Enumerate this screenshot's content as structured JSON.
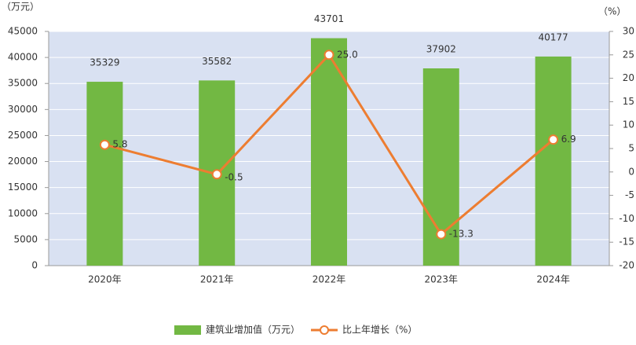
{
  "chart_data": {
    "type": "bar",
    "y_label": "（万元）",
    "y2_label": "（%）",
    "categories": [
      "2020年",
      "2021年",
      "2022年",
      "2023年",
      "2024年"
    ],
    "series": [
      {
        "name": "建筑业增加值（万元）",
        "type": "bar",
        "color": "#72b843",
        "values": [
          35329,
          35582,
          43701,
          37902,
          40177
        ]
      },
      {
        "name": "比上年增长（%）",
        "type": "line",
        "axis": "y2",
        "color": "#ed7d31",
        "values": [
          5.8,
          -0.5,
          25.0,
          -13.3,
          6.9
        ],
        "value_labels": [
          "5.8",
          "-0.5",
          "25.0",
          "-13.3",
          "6.9"
        ]
      }
    ],
    "ylim": [
      0,
      45000
    ],
    "yticks": [
      0,
      5000,
      10000,
      15000,
      20000,
      25000,
      30000,
      35000,
      40000,
      45000
    ],
    "y2lim": [
      -20,
      30
    ],
    "y2ticks": [
      -20,
      -15,
      -10,
      -5,
      0,
      5,
      10,
      15,
      20,
      25,
      30
    ],
    "grid": true,
    "background": "#d9e1f2",
    "legend": "bottom"
  }
}
